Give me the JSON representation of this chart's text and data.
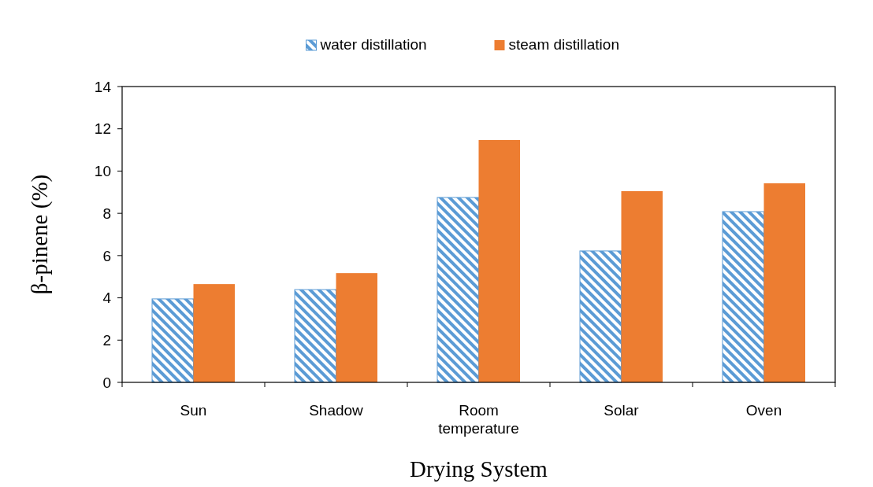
{
  "chart_data": {
    "type": "bar",
    "xlabel": "Drying System",
    "ylabel": "β-pinene (%)",
    "categories": [
      "Sun",
      "Shadow",
      "Room temperature",
      "Solar",
      "Oven"
    ],
    "series": [
      {
        "name": "water distillation",
        "color": "#5b9bd5",
        "values": [
          3.95,
          4.39,
          8.75,
          6.22,
          8.08
        ]
      },
      {
        "name": "steam distillation",
        "color": "#ed7d31",
        "values": [
          4.65,
          5.17,
          11.47,
          9.05,
          9.42
        ]
      }
    ],
    "ylim": [
      0,
      14
    ],
    "yticks": [
      0,
      2,
      4,
      6,
      8,
      10,
      12,
      14
    ],
    "grid": false,
    "legend": "top"
  }
}
